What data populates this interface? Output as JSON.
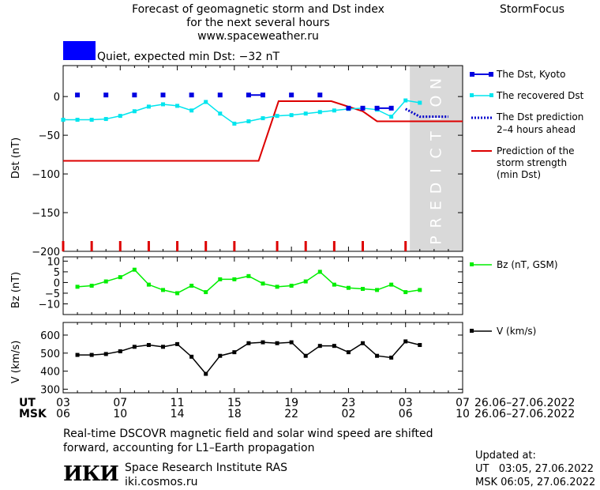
{
  "header": {
    "title_line1": "Forecast of geomagnetic storm and Dst index",
    "title_line2": "for the next several hours",
    "site": "www.spaceweather.ru",
    "brand": "StormFocus"
  },
  "status": {
    "text": "Quiet, expected min Dst: −32 nT",
    "color": "#0000ff"
  },
  "prediction_band_label": "PREDICTION",
  "colors": {
    "kyoto": "#0000e0",
    "recovered": "#00e5ee",
    "prediction_dst": "#0000cc",
    "storm_strength": "#dd0000",
    "bz": "#00ee00",
    "v": "#000000",
    "band": "#d9d9d9"
  },
  "chart_data": [
    {
      "type": "line",
      "panel": "dst",
      "ylabel": "Dst (nT)",
      "ylim": [
        -200,
        40
      ],
      "yticks": [
        0,
        -50,
        -100,
        -150,
        -200
      ],
      "xlim": [
        3,
        31
      ],
      "prediction_start": 27.3,
      "legend_placement": "right",
      "series": [
        {
          "name": "The Dst, Kyoto",
          "style": "squares",
          "x": [
            4,
            6,
            8,
            10,
            12,
            14,
            16,
            17,
            19,
            21,
            23,
            24,
            25,
            26
          ],
          "y": [
            2,
            2,
            2,
            2,
            2,
            2,
            2,
            2,
            2,
            2,
            -15,
            -15,
            -15,
            -15
          ],
          "joined": [
            [
              16,
              17
            ],
            [
              25,
              26
            ]
          ]
        },
        {
          "name": "The recovered Dst",
          "style": "line-markers",
          "x": [
            3,
            4,
            5,
            6,
            7,
            8,
            9,
            10,
            11,
            12,
            13,
            14,
            15,
            16,
            17,
            18,
            19,
            20,
            21,
            22,
            23,
            24,
            25,
            26,
            27,
            28
          ],
          "y": [
            -30,
            -30,
            -30,
            -29,
            -25,
            -19,
            -13,
            -10,
            -12,
            -18,
            -7,
            -22,
            -35,
            -32,
            -28,
            -25,
            -24,
            -22,
            -20,
            -18,
            -16,
            -15,
            -17,
            -26,
            -5,
            -8
          ]
        },
        {
          "name": "The Dst prediction",
          "name_line2": "2–4 hours ahead",
          "style": "dotted",
          "x": [
            27,
            28,
            30
          ],
          "y": [
            -16,
            -26,
            -26
          ]
        },
        {
          "name": "Prediction of the",
          "name_line2": "storm strength",
          "name_line3": "(min Dst)",
          "style": "step",
          "x": [
            3,
            16.7,
            18.1,
            21.8,
            24,
            25,
            31
          ],
          "y": [
            -83,
            -83,
            -6,
            -6,
            -19,
            -32,
            -32
          ]
        }
      ],
      "storm_ticks": [
        3,
        5,
        7,
        9,
        11,
        13,
        15,
        18,
        20,
        22,
        24,
        27
      ]
    },
    {
      "type": "line",
      "panel": "bz",
      "ylabel": "Bz (nT)",
      "ylim": [
        -15,
        12
      ],
      "yticks": [
        10,
        5,
        0,
        -5,
        -10
      ],
      "series": [
        {
          "name": "Bz (nT, GSM)",
          "x": [
            4,
            5,
            6,
            7,
            8,
            9,
            10,
            11,
            12,
            13,
            14,
            15,
            16,
            17,
            18,
            19,
            20,
            21,
            22,
            23,
            24,
            25,
            26,
            27,
            28
          ],
          "y": [
            -2,
            -1.5,
            0.5,
            2.5,
            6,
            -1,
            -3.5,
            -5,
            -1.5,
            -4.5,
            1.5,
            1.5,
            3,
            -0.5,
            -2,
            -1.5,
            0.5,
            5,
            -1,
            -2.5,
            -3,
            -3.5,
            -1,
            -4.5,
            -3.5
          ]
        }
      ]
    },
    {
      "type": "line",
      "panel": "v",
      "ylabel": "V (km/s)",
      "ylim": [
        280,
        670
      ],
      "yticks": [
        600,
        500,
        400,
        300
      ],
      "series": [
        {
          "name": "V (km/s)",
          "x": [
            4,
            5,
            6,
            7,
            8,
            9,
            10,
            11,
            12,
            13,
            14,
            15,
            16,
            17,
            18,
            19,
            20,
            21,
            22,
            23,
            24,
            25,
            26,
            27,
            28
          ],
          "y": [
            490,
            490,
            495,
            510,
            535,
            545,
            535,
            550,
            480,
            385,
            485,
            505,
            555,
            560,
            555,
            560,
            485,
            540,
            540,
            505,
            555,
            485,
            475,
            565,
            545
          ]
        }
      ]
    }
  ],
  "x_axis": {
    "ut_label": "UT",
    "msk_label": "MSK",
    "ut_ticks": [
      "03",
      "07",
      "11",
      "15",
      "19",
      "23",
      "03",
      "07"
    ],
    "msk_ticks": [
      "06",
      "10",
      "14",
      "18",
      "22",
      "02",
      "06",
      "10"
    ],
    "ut_range": "26.06–27.06.2022",
    "msk_range": "26.06–27.06.2022"
  },
  "footer": {
    "note_line1": "Real-time DSCOVR magnetic field and solar wind speed are shifted",
    "note_line2": "forward, accounting for L1–Earth propagation",
    "logo": "ИКИ",
    "institute": "Space Research Institute RAS",
    "institute_url": "iki.cosmos.ru",
    "updated_label": "Updated at:",
    "updated_ut": "UT   03:05, 27.06.2022",
    "updated_msk": "MSK 06:05, 27.06.2022"
  }
}
